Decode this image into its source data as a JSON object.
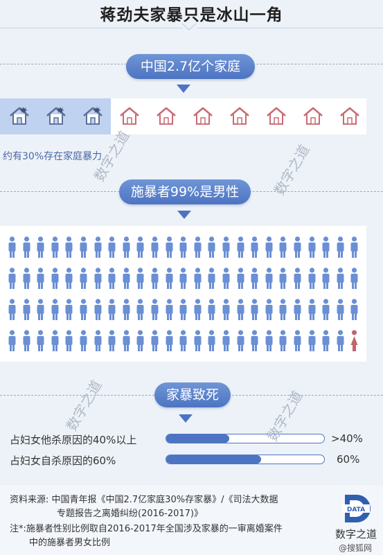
{
  "title": "蒋劲夫家暴只是冰山一角",
  "sections": {
    "households": {
      "label": "中国2.7亿个家庭",
      "note": "约有30%存在家庭暴力",
      "total_icons": 10,
      "highlighted_icons": 3
    },
    "perpetrators": {
      "label": "施暴者99%是男性",
      "total_icons": 100,
      "female_icons": 1,
      "colors": {
        "male": "#6a8fd4",
        "female": "#c0666e"
      }
    },
    "fatal": {
      "label": "家暴致死"
    }
  },
  "chart_data": {
    "type": "bar",
    "title": "家暴致死",
    "categories": [
      "占妇女他杀原因的40%以上",
      "占妇女自杀原因的60%"
    ],
    "values": [
      40,
      60
    ],
    "value_labels": [
      ">40%",
      "60%"
    ],
    "ylim": [
      0,
      100
    ]
  },
  "footer": {
    "source_line1": "资料来源:   中国青年报《中国2.7亿家庭30%存家暴》/《司法大数据",
    "source_line2": "专题报告之离婚纠纷(2016-2017)》",
    "note_line1": "注*:施暴者性别比例取自2016-2017年全国涉及家暴的一审离婚案件",
    "note_line2": "中的施暴者男女比例",
    "logo_text": "DATA",
    "brand": "数字之道",
    "weibo": "@搜狐网"
  },
  "watermark": "数字之道"
}
